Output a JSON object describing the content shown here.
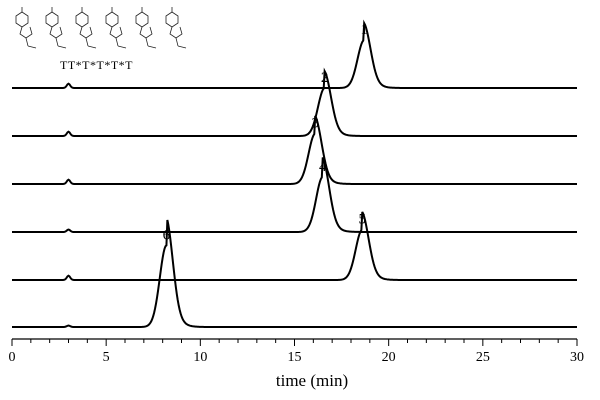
{
  "chart_data": {
    "type": "line",
    "title": "",
    "xlabel": "time (min)",
    "ylabel": "",
    "xlim": [
      0,
      30
    ],
    "x_ticks": [
      0,
      5,
      10,
      15,
      20,
      25,
      30
    ],
    "grid": false,
    "legend": "none",
    "inset_label": "TT*T*T*T*T",
    "series": [
      {
        "name": "1",
        "peaks": [
          {
            "x": 3.0,
            "h": 0.09
          },
          {
            "x": 18.7,
            "h": 1.0
          }
        ]
      },
      {
        "name": "2",
        "peaks": [
          {
            "x": 3.0,
            "h": 0.09
          },
          {
            "x": 16.6,
            "h": 1.0
          }
        ]
      },
      {
        "name": "3",
        "peaks": [
          {
            "x": 3.0,
            "h": 0.09
          },
          {
            "x": 16.1,
            "h": 1.05
          }
        ]
      },
      {
        "name": "4",
        "peaks": [
          {
            "x": 3.0,
            "h": 0.05
          },
          {
            "x": 16.5,
            "h": 1.15
          }
        ]
      },
      {
        "name": "5",
        "peaks": [
          {
            "x": 3.0,
            "h": 0.09
          },
          {
            "x": 18.6,
            "h": 1.05
          }
        ]
      },
      {
        "name": "6",
        "peaks": [
          {
            "x": 3.0,
            "h": 0.03
          },
          {
            "x": 8.2,
            "h": 1.7
          }
        ]
      }
    ]
  }
}
